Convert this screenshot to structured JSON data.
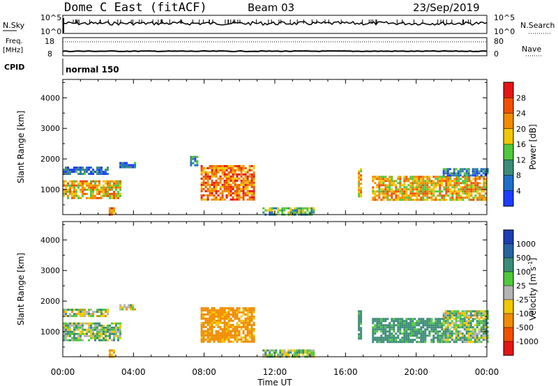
{
  "header": {
    "station": "Dome C East (fitACF)",
    "beam": "Beam 03",
    "date": "23/Sep/2019"
  },
  "top_panels": {
    "nsky_label": "N.Sky",
    "nsearch_label": "N.Search",
    "nsky_ticks": [
      "10^5",
      "10^0"
    ],
    "nsearch_ticks": [
      "10^5",
      "10^0"
    ],
    "freq_label_1": "Freq.",
    "freq_label_2": "[MHz]",
    "freq_ticks": [
      "18",
      "8"
    ],
    "nave_label": "Nave",
    "nave_ticks": [
      "80",
      "0"
    ],
    "cpid_label": "CPID",
    "cpid_value": "normal 150"
  },
  "chart_data": [
    {
      "type": "heatmap",
      "panel": "power",
      "ylabel": "Slant Range [km]",
      "xlabel": "Time UT",
      "xlim": [
        "00:00",
        "24:00"
      ],
      "ylim": [
        180,
        4600
      ],
      "yticks": [
        1000,
        2000,
        3000,
        4000
      ],
      "xticks": [
        "00:00",
        "04:00",
        "08:00",
        "12:00",
        "16:00",
        "20:00",
        "00:00"
      ],
      "colorbar": {
        "label": "Power [dB]",
        "ticks": [
          4,
          8,
          12,
          16,
          20,
          24,
          28
        ],
        "colors": [
          "#1e3cff",
          "#1e6ec8",
          "#3c8c78",
          "#50c83c",
          "#f0c800",
          "#f08c00",
          "#f05000",
          "#e61414"
        ]
      },
      "regions": [
        {
          "t0": 0.0,
          "t1": 3.2,
          "r0": 700,
          "r1": 1300,
          "level": 20
        },
        {
          "t0": 0.0,
          "t1": 2.6,
          "r0": 1500,
          "r1": 1750,
          "level": 6
        },
        {
          "t0": 3.2,
          "t1": 4.1,
          "r0": 1700,
          "r1": 1900,
          "level": 6
        },
        {
          "t0": 7.8,
          "t1": 10.8,
          "r0": 700,
          "r1": 1800,
          "level": 24
        },
        {
          "t0": 7.2,
          "t1": 7.6,
          "r0": 1800,
          "r1": 2100,
          "level": 8
        },
        {
          "t0": 11.3,
          "t1": 14.2,
          "r0": 200,
          "r1": 420,
          "level": 12
        },
        {
          "t0": 16.7,
          "t1": 16.9,
          "r0": 800,
          "r1": 1700,
          "level": 20
        },
        {
          "t0": 17.5,
          "t1": 24.0,
          "r0": 650,
          "r1": 1450,
          "level": 20
        },
        {
          "t0": 21.5,
          "t1": 24.0,
          "r0": 1450,
          "r1": 1700,
          "level": 8
        },
        {
          "t0": 2.6,
          "t1": 2.9,
          "r0": 200,
          "r1": 420,
          "level": 24
        }
      ]
    },
    {
      "type": "heatmap",
      "panel": "velocity",
      "ylabel": "Slant Range [km]",
      "xlabel": "Time UT",
      "xlim": [
        "00:00",
        "24:00"
      ],
      "ylim": [
        180,
        4600
      ],
      "yticks": [
        1000,
        2000,
        3000,
        4000
      ],
      "xticks": [
        "00:00",
        "04:00",
        "08:00",
        "12:00",
        "16:00",
        "20:00",
        "00:00"
      ],
      "colorbar": {
        "label": "Velocity [m s-1]",
        "ticks": [
          1000,
          500,
          100,
          25,
          -25,
          -100,
          -500,
          -1000
        ],
        "colors": [
          "#1e3cb4",
          "#2864a0",
          "#3c8c78",
          "#50c83c",
          "#b4b4b4",
          "#f0c800",
          "#f08c00",
          "#f05000",
          "#e61414"
        ]
      },
      "regions": [
        {
          "t0": 0.0,
          "t1": 3.2,
          "r0": 700,
          "r1": 1300,
          "level": 60
        },
        {
          "t0": 0.0,
          "t1": 2.6,
          "r0": 1500,
          "r1": 1750,
          "level": 0
        },
        {
          "t0": 3.2,
          "t1": 4.1,
          "r0": 1700,
          "r1": 1900,
          "level": 0
        },
        {
          "t0": 7.8,
          "t1": 10.8,
          "r0": 700,
          "r1": 1800,
          "level": -200
        },
        {
          "t0": 11.3,
          "t1": 14.2,
          "r0": 200,
          "r1": 420,
          "level": 60
        },
        {
          "t0": 16.7,
          "t1": 16.9,
          "r0": 800,
          "r1": 1700,
          "level": 200
        },
        {
          "t0": 17.5,
          "t1": 21.5,
          "r0": 650,
          "r1": 1450,
          "level": 200
        },
        {
          "t0": 21.5,
          "t1": 24.0,
          "r0": 650,
          "r1": 1450,
          "level": 60
        },
        {
          "t0": 21.5,
          "t1": 24.0,
          "r0": 1450,
          "r1": 1700,
          "level": 0
        },
        {
          "t0": 2.6,
          "t1": 2.9,
          "r0": 200,
          "r1": 420,
          "level": -200
        }
      ]
    }
  ],
  "axis": {
    "ylabel": "Slant Range [km]",
    "xlabel": "Time UT",
    "power_cb_label": "Power [dB]",
    "velocity_cb_label": "Velocity [m s",
    "velocity_cb_unit_sup": "-1",
    "velocity_cb_close": "]"
  }
}
